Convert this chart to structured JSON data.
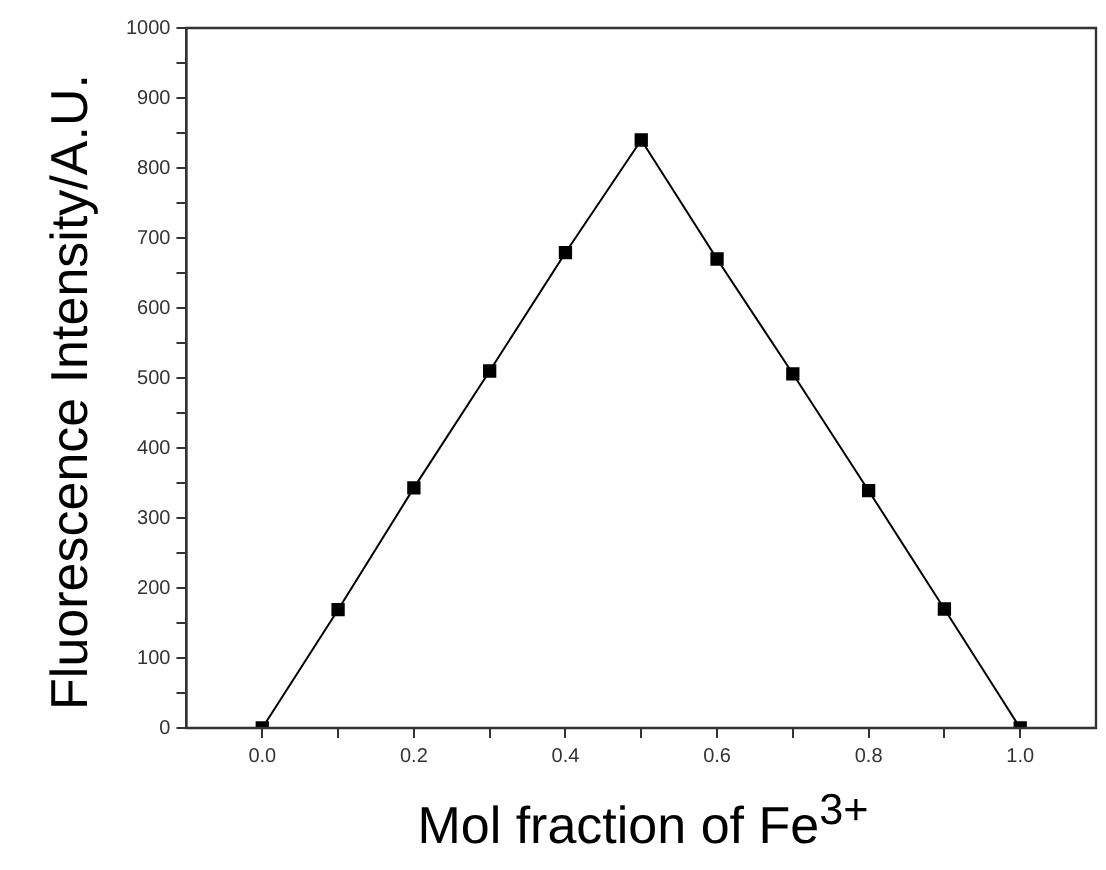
{
  "chart_data": {
    "type": "line",
    "xlabel": "Mol fraction of Fe$^{3+}$",
    "ylabel": "Fluorescence Intensity/A.U.",
    "x": [
      0.0,
      0.1,
      0.2,
      0.3,
      0.4,
      0.5,
      0.6,
      0.7,
      0.8,
      0.9,
      1.0
    ],
    "series": [
      {
        "color": "#000000",
        "values": [
          0,
          169,
          343,
          510,
          679,
          840,
          670,
          506,
          339,
          170,
          0
        ]
      }
    ],
    "xlim": [
      -0.1,
      1.1
    ],
    "xticks": [
      {
        "value": 0,
        "label": "0.0"
      },
      {
        "value": 0.1,
        "label": null
      },
      {
        "value": 0.2,
        "label": "0.2"
      },
      {
        "value": 0.3,
        "label": null
      },
      {
        "value": 0.4,
        "label": "0.4"
      },
      {
        "value": 0.5,
        "label": null
      },
      {
        "value": 0.6,
        "label": "0.6"
      },
      {
        "value": 0.7,
        "label": null
      },
      {
        "value": 0.8,
        "label": "0.8"
      },
      {
        "value": 0.9,
        "label": null
      },
      {
        "value": 1,
        "label": "1.0"
      }
    ],
    "ylim": [
      0,
      1000
    ],
    "yticks": [
      0,
      {
        "value": 50,
        "label": null
      },
      100,
      {
        "value": 150,
        "label": null
      },
      200,
      {
        "value": 250,
        "label": null
      },
      300,
      {
        "value": 350,
        "label": null
      },
      400,
      {
        "value": 450,
        "label": null
      },
      500,
      {
        "value": 550,
        "label": null
      },
      600,
      {
        "value": 650,
        "label": null
      },
      700,
      {
        "value": 750,
        "label": null
      },
      800,
      {
        "value": 850,
        "label": null
      },
      900,
      {
        "value": 950,
        "label": null
      },
      1000
    ],
    "grid": false,
    "legend": false,
    "marker": "square",
    "line_style": "solid"
  }
}
